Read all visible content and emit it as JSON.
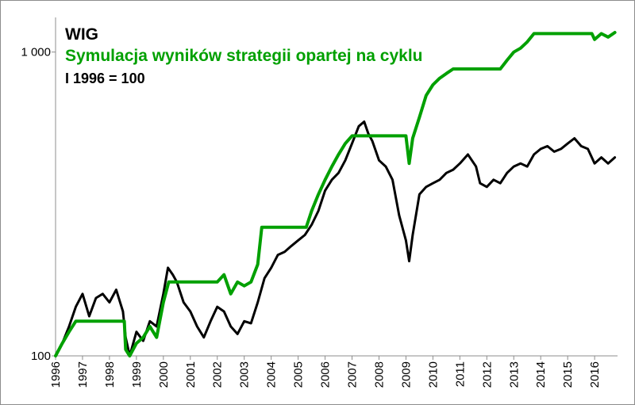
{
  "chart_data": {
    "type": "line",
    "title": "WIG",
    "subtitle": "I 1996 = 100",
    "xlabel": "",
    "ylabel": "",
    "y_scale": "log",
    "ylim": [
      100,
      1300
    ],
    "xlim": [
      1996.0,
      2016.85
    ],
    "y_ticks": [
      100,
      1000
    ],
    "y_tick_labels": [
      "100",
      "1 000"
    ],
    "x_ticks": [
      1996,
      1997,
      1998,
      1999,
      2000,
      2001,
      2002,
      2003,
      2004,
      2005,
      2006,
      2007,
      2008,
      2009,
      2010,
      2011,
      2012,
      2013,
      2014,
      2015,
      2016
    ],
    "x_tick_labels": [
      "1996",
      "1997",
      "1998",
      "1999",
      "2000",
      "2001",
      "2002",
      "2003",
      "2004",
      "2005",
      "2006",
      "2007",
      "2008",
      "2009",
      "2010",
      "2011",
      "2012",
      "2013",
      "2014",
      "2015",
      "2016"
    ],
    "grid": false,
    "series": [
      {
        "name": "",
        "color": "#000000",
        "points": [
          [
            1996.0,
            100
          ],
          [
            1996.25,
            110
          ],
          [
            1996.5,
            125
          ],
          [
            1996.75,
            145
          ],
          [
            1997.0,
            160
          ],
          [
            1997.25,
            135
          ],
          [
            1997.5,
            155
          ],
          [
            1997.75,
            160
          ],
          [
            1998.0,
            150
          ],
          [
            1998.25,
            165
          ],
          [
            1998.5,
            140
          ],
          [
            1998.6,
            115
          ],
          [
            1998.75,
            100
          ],
          [
            1999.0,
            120
          ],
          [
            1999.25,
            112
          ],
          [
            1999.5,
            130
          ],
          [
            1999.75,
            125
          ],
          [
            2000.0,
            160
          ],
          [
            2000.17,
            195
          ],
          [
            2000.35,
            185
          ],
          [
            2000.5,
            175
          ],
          [
            2000.75,
            150
          ],
          [
            2001.0,
            140
          ],
          [
            2001.25,
            125
          ],
          [
            2001.5,
            115
          ],
          [
            2001.75,
            130
          ],
          [
            2002.0,
            145
          ],
          [
            2002.25,
            140
          ],
          [
            2002.5,
            125
          ],
          [
            2002.75,
            118
          ],
          [
            2003.0,
            130
          ],
          [
            2003.25,
            128
          ],
          [
            2003.5,
            150
          ],
          [
            2003.75,
            180
          ],
          [
            2004.0,
            195
          ],
          [
            2004.25,
            215
          ],
          [
            2004.5,
            220
          ],
          [
            2004.75,
            230
          ],
          [
            2005.0,
            240
          ],
          [
            2005.25,
            250
          ],
          [
            2005.5,
            270
          ],
          [
            2005.75,
            300
          ],
          [
            2006.0,
            350
          ],
          [
            2006.25,
            380
          ],
          [
            2006.5,
            400
          ],
          [
            2006.75,
            440
          ],
          [
            2007.0,
            500
          ],
          [
            2007.25,
            570
          ],
          [
            2007.45,
            590
          ],
          [
            2007.6,
            540
          ],
          [
            2007.75,
            510
          ],
          [
            2008.0,
            440
          ],
          [
            2008.25,
            420
          ],
          [
            2008.5,
            380
          ],
          [
            2008.75,
            290
          ],
          [
            2009.0,
            240
          ],
          [
            2009.12,
            205
          ],
          [
            2009.25,
            250
          ],
          [
            2009.5,
            340
          ],
          [
            2009.75,
            360
          ],
          [
            2010.0,
            370
          ],
          [
            2010.25,
            380
          ],
          [
            2010.5,
            400
          ],
          [
            2010.75,
            410
          ],
          [
            2011.0,
            430
          ],
          [
            2011.3,
            460
          ],
          [
            2011.6,
            420
          ],
          [
            2011.75,
            370
          ],
          [
            2012.0,
            360
          ],
          [
            2012.25,
            380
          ],
          [
            2012.5,
            370
          ],
          [
            2012.75,
            400
          ],
          [
            2013.0,
            420
          ],
          [
            2013.25,
            430
          ],
          [
            2013.5,
            420
          ],
          [
            2013.75,
            460
          ],
          [
            2014.0,
            480
          ],
          [
            2014.25,
            490
          ],
          [
            2014.5,
            470
          ],
          [
            2014.75,
            480
          ],
          [
            2015.0,
            500
          ],
          [
            2015.25,
            520
          ],
          [
            2015.5,
            490
          ],
          [
            2015.75,
            480
          ],
          [
            2016.0,
            430
          ],
          [
            2016.25,
            450
          ],
          [
            2016.5,
            430
          ],
          [
            2016.75,
            450
          ]
        ]
      },
      {
        "name": "Symulacja wyników strategii opartej na cyklu",
        "color": "#00a000",
        "points": [
          [
            1996.0,
            100
          ],
          [
            1996.25,
            110
          ],
          [
            1996.5,
            120
          ],
          [
            1996.75,
            130
          ],
          [
            1998.55,
            130
          ],
          [
            1998.6,
            105
          ],
          [
            1998.75,
            100
          ],
          [
            1999.0,
            110
          ],
          [
            1999.25,
            115
          ],
          [
            1999.5,
            125
          ],
          [
            1999.75,
            115
          ],
          [
            2000.0,
            150
          ],
          [
            2000.2,
            175
          ],
          [
            2002.0,
            175
          ],
          [
            2002.25,
            185
          ],
          [
            2002.5,
            160
          ],
          [
            2002.75,
            175
          ],
          [
            2003.0,
            170
          ],
          [
            2003.25,
            175
          ],
          [
            2003.5,
            200
          ],
          [
            2003.65,
            265
          ],
          [
            2005.3,
            265
          ],
          [
            2005.5,
            300
          ],
          [
            2005.75,
            340
          ],
          [
            2006.0,
            380
          ],
          [
            2006.25,
            420
          ],
          [
            2006.5,
            460
          ],
          [
            2006.75,
            500
          ],
          [
            2007.0,
            530
          ],
          [
            2009.0,
            530
          ],
          [
            2009.12,
            430
          ],
          [
            2009.25,
            520
          ],
          [
            2009.5,
            610
          ],
          [
            2009.75,
            720
          ],
          [
            2010.0,
            780
          ],
          [
            2010.25,
            820
          ],
          [
            2010.5,
            850
          ],
          [
            2010.75,
            880
          ],
          [
            2012.5,
            880
          ],
          [
            2012.75,
            940
          ],
          [
            2013.0,
            1000
          ],
          [
            2013.25,
            1030
          ],
          [
            2013.5,
            1080
          ],
          [
            2013.75,
            1150
          ],
          [
            2014.0,
            1150
          ],
          [
            2015.9,
            1150
          ],
          [
            2016.0,
            1100
          ],
          [
            2016.25,
            1150
          ],
          [
            2016.5,
            1120
          ],
          [
            2016.75,
            1160
          ]
        ]
      }
    ]
  }
}
